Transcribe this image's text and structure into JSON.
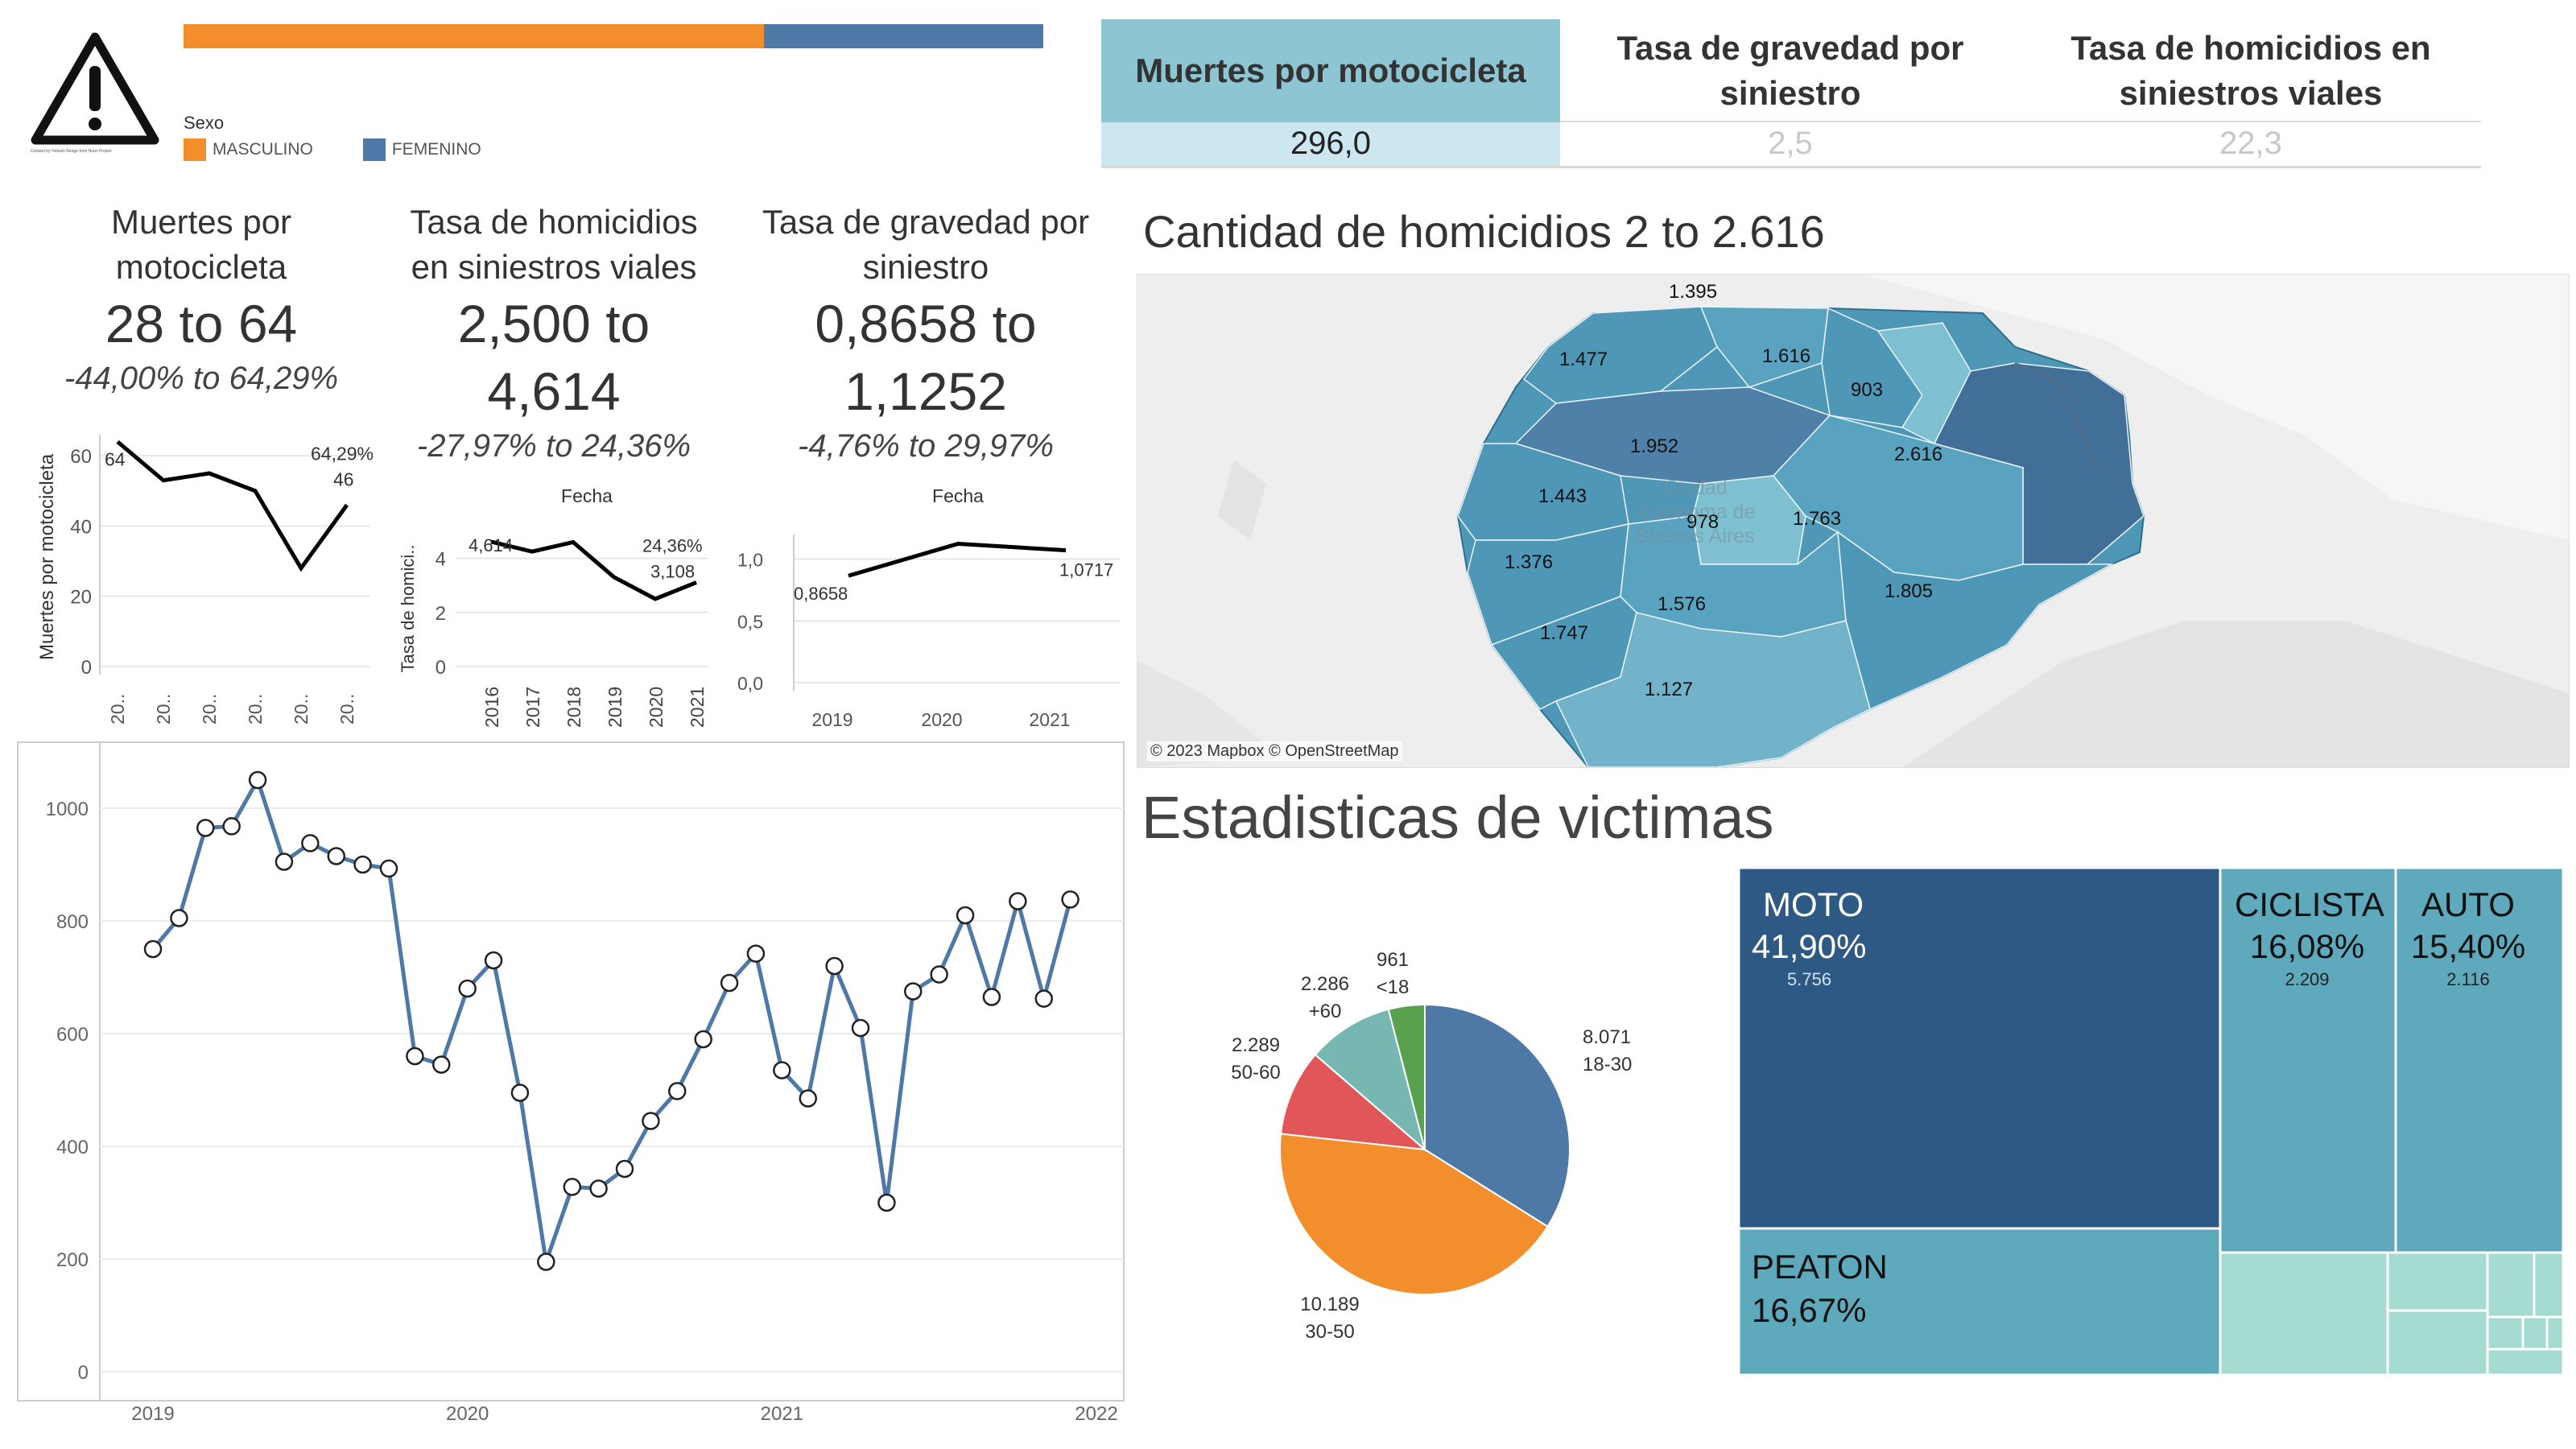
{
  "header": {
    "warning_caption": "Created by Yoluwin Renge from Noun Project",
    "legend_title": "Sexo",
    "legend_items": [
      {
        "label": "MASCULINO",
        "color": "#f28e2b"
      },
      {
        "label": "FEMENINO",
        "color": "#4e79a7"
      }
    ],
    "gender_bar": {
      "masculino_share": 0.675,
      "femenino_share": 0.325
    }
  },
  "kpi_table": {
    "headers": [
      "Muertes por motocicleta",
      "Tasa de gravedad por siniestro",
      "Tasa de homicidios en siniestros viales"
    ],
    "values": [
      "296,0",
      "2,5",
      "22,3"
    ],
    "selected_color": "#8ec5d3",
    "selected_value_color": "#cde7f0"
  },
  "cards": [
    {
      "title": "Muertes por motocicleta",
      "range": "28 to 64",
      "pct": "-44,00% to 64,29%"
    },
    {
      "title": "Tasa de homicidios en siniestros viales",
      "range": "2,500 to 4,614",
      "pct": "-27,97% to 24,36%"
    },
    {
      "title": "Tasa de gravedad por siniestro",
      "range": "0,8658 to 1,1252",
      "pct": "-4,76% to 29,97%"
    }
  ],
  "map": {
    "title": "Cantidad de homicidios 2 to 2.616",
    "attribution": "© 2023 Mapbox © OpenStreetMap",
    "city_label": "Ciudad Autónoma de Buenos Aires",
    "labels": [
      "1.395",
      "1.477",
      "1.616",
      "903",
      "1.952",
      "2.616",
      "1.443",
      "978",
      "1.763",
      "1.376",
      "1.805",
      "1.576",
      "1.747",
      "1.127"
    ]
  },
  "victims": {
    "title": "Estadisticas de victimas"
  },
  "chart_data": [
    {
      "type": "line",
      "ylabel": "Muertes por motocicleta",
      "x": [
        "20..",
        "20..",
        "20..",
        "20..",
        "20..",
        "20.."
      ],
      "values": [
        64,
        53,
        55,
        50,
        28,
        46
      ],
      "yticks": [
        0,
        20,
        40,
        60
      ],
      "ylim": [
        0,
        66
      ],
      "annotations": [
        "64",
        "64,29%",
        "46"
      ]
    },
    {
      "type": "line",
      "title": "Fecha",
      "ylabel": "Tasa de homici..",
      "x": [
        "2016",
        "2017",
        "2018",
        "2019",
        "2020",
        "2021"
      ],
      "values": [
        4.614,
        4.25,
        4.6,
        3.3,
        2.5,
        3.108
      ],
      "yticks": [
        0,
        2,
        4
      ],
      "ylim": [
        0,
        5
      ],
      "annotations": [
        "4,614",
        "24,36%",
        "3,108"
      ]
    },
    {
      "type": "line",
      "title": "Fecha",
      "x": [
        "2019",
        "2020",
        "2021"
      ],
      "values": [
        0.8658,
        1.1252,
        1.0717
      ],
      "ytick_labels": [
        "0,0",
        "0,5",
        "1,0"
      ],
      "yticks": [
        0,
        0.5,
        1.0
      ],
      "ylim": [
        0,
        1.2
      ],
      "annotations": [
        "0,8658",
        "1,0717"
      ]
    },
    {
      "type": "line",
      "x_ticks": [
        "2019",
        "2020",
        "2021",
        "2022"
      ],
      "yticks": [
        0,
        200,
        400,
        600,
        800,
        1000
      ],
      "ylim": [
        0,
        1100
      ],
      "xlim": [
        2019.0,
        2022.0
      ],
      "series": [
        {
          "color": "#4e79a7",
          "points": [
            [
              2019.0,
              750
            ],
            [
              2019.083,
              805
            ],
            [
              2019.167,
              965
            ],
            [
              2019.25,
              968
            ],
            [
              2019.333,
              1050
            ],
            [
              2019.417,
              905
            ],
            [
              2019.5,
              938
            ],
            [
              2019.583,
              915
            ],
            [
              2019.667,
              900
            ],
            [
              2019.75,
              893
            ],
            [
              2019.833,
              560
            ],
            [
              2019.917,
              545
            ],
            [
              2020.0,
              680
            ],
            [
              2020.083,
              730
            ],
            [
              2020.167,
              495
            ],
            [
              2020.25,
              195
            ],
            [
              2020.333,
              328
            ],
            [
              2020.417,
              325
            ],
            [
              2020.5,
              360
            ],
            [
              2020.583,
              445
            ],
            [
              2020.667,
              498
            ],
            [
              2020.75,
              590
            ],
            [
              2020.833,
              690
            ],
            [
              2020.917,
              742
            ],
            [
              2021.0,
              535
            ],
            [
              2021.083,
              485
            ],
            [
              2021.167,
              720
            ],
            [
              2021.25,
              610
            ],
            [
              2021.333,
              300
            ],
            [
              2021.417,
              675
            ],
            [
              2021.5,
              705
            ],
            [
              2021.583,
              810
            ],
            [
              2021.667,
              665
            ],
            [
              2021.75,
              835
            ],
            [
              2021.833,
              662
            ],
            [
              2021.917,
              838
            ]
          ]
        }
      ]
    },
    {
      "type": "pie",
      "slices": [
        {
          "label": "18-30",
          "value": 8071,
          "value_label": "8.071",
          "color": "#4e79a7"
        },
        {
          "label": "30-50",
          "value": 10189,
          "value_label": "10.189",
          "color": "#f28e2b"
        },
        {
          "label": "50-60",
          "value": 2289,
          "value_label": "2.289",
          "color": "#e15759"
        },
        {
          "label": "+60",
          "value": 2286,
          "value_label": "2.286",
          "color": "#76b7b2"
        },
        {
          "label": "<18",
          "value": 961,
          "value_label": "961",
          "color": "#59a14f"
        }
      ]
    },
    {
      "type": "treemap",
      "items": [
        {
          "name": "MOTO",
          "pct": "41,90%",
          "value": 5756,
          "value_label": "5.756",
          "color": "#2e5985"
        },
        {
          "name": "CICLISTA",
          "pct": "16,08%",
          "value": 2209,
          "value_label": "2.209",
          "color": "#5fa9bd"
        },
        {
          "name": "AUTO",
          "pct": "15,40%",
          "value": 2116,
          "value_label": "2.116",
          "color": "#5fa9bd"
        },
        {
          "name": "PEATON",
          "pct": "16,67%",
          "color": "#5fa9bd"
        }
      ]
    }
  ]
}
